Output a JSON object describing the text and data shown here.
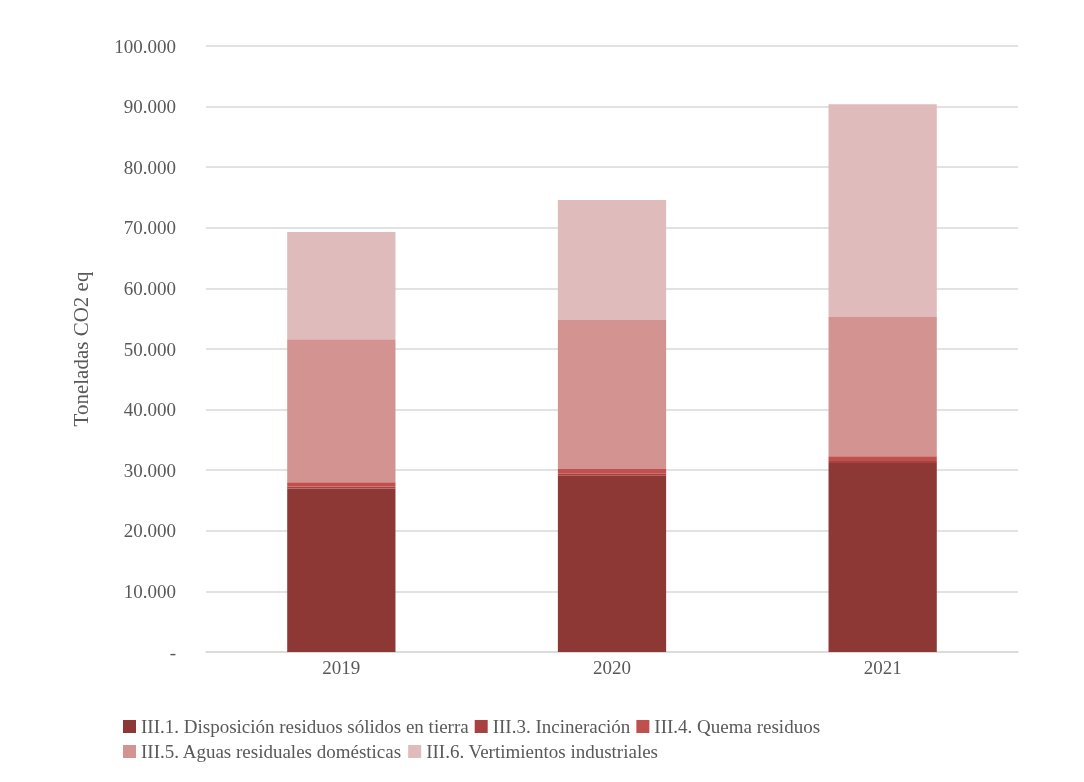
{
  "chart_data": {
    "type": "bar",
    "stacked": true,
    "ylabel": "Toneladas CO2 eq",
    "categories": [
      "2019",
      "2020",
      "2021"
    ],
    "series": [
      {
        "name": "III.1. Disposición residuos sólidos en tierra",
        "color": "#8e3836",
        "values": [
          27000,
          29100,
          31200
        ]
      },
      {
        "name": "III.3. Incineración",
        "color": "#a8423f",
        "values": [
          300,
          300,
          300
        ]
      },
      {
        "name": "III.4. Quema residuos",
        "color": "#c0504d",
        "values": [
          700,
          800,
          800
        ]
      },
      {
        "name": "III.5. Aguas residuales domésticas",
        "color": "#d39391",
        "values": [
          23600,
          24600,
          23000
        ]
      },
      {
        "name": "III.6. Vertimientos industriales",
        "color": "#e0bbbb",
        "values": [
          17700,
          19800,
          35100
        ]
      }
    ],
    "ylim": [
      0,
      100000
    ],
    "yticks": [
      {
        "value": 0,
        "label": "-"
      },
      {
        "value": 10000,
        "label": "10.000"
      },
      {
        "value": 20000,
        "label": "20.000"
      },
      {
        "value": 30000,
        "label": "30.000"
      },
      {
        "value": 40000,
        "label": "40.000"
      },
      {
        "value": 50000,
        "label": "50.000"
      },
      {
        "value": 60000,
        "label": "60.000"
      },
      {
        "value": 70000,
        "label": "70.000"
      },
      {
        "value": 80000,
        "label": "80.000"
      },
      {
        "value": 90000,
        "label": "90.000"
      },
      {
        "value": 100000,
        "label": "100.000"
      }
    ],
    "grid": "y",
    "legend": "bottom"
  }
}
